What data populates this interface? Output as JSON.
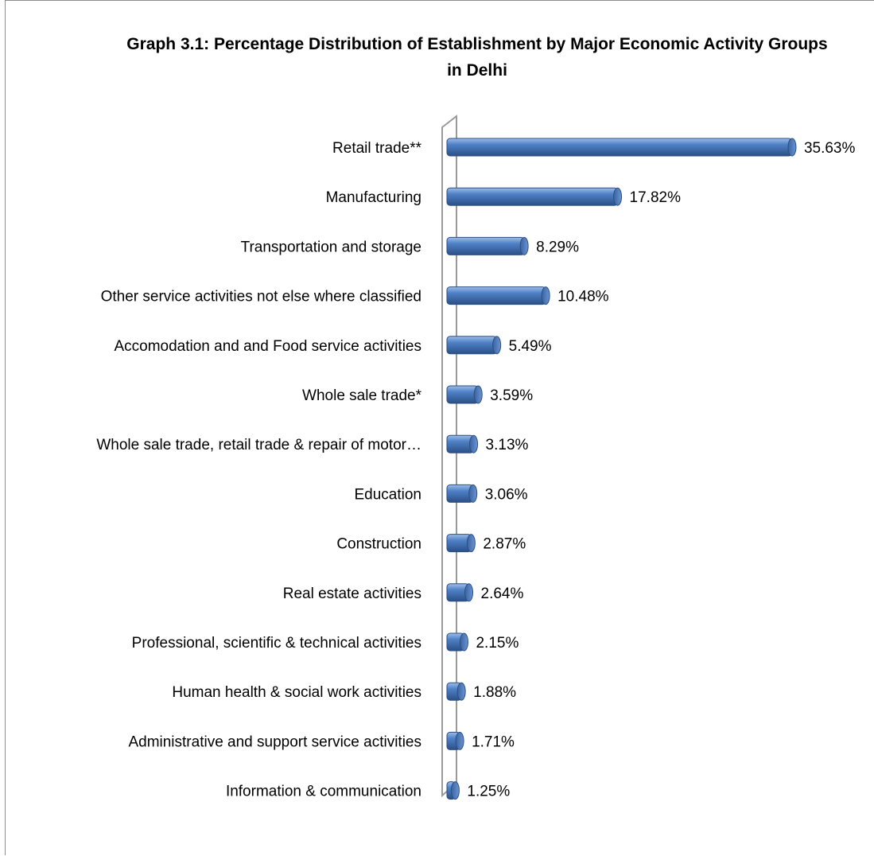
{
  "chart_data": {
    "type": "bar",
    "orientation": "horizontal",
    "title": "Graph 3.1: Percentage Distribution of Establishment by Major Economic Activity Groups in Delhi",
    "xlabel": "",
    "ylabel": "",
    "grid": false,
    "legend": "none",
    "bar_color": "#4472c4",
    "xlim": [
      0,
      40
    ],
    "categories": [
      "Retail trade**",
      "Manufacturing",
      "Transportation and storage",
      "Other service activities not else where classified",
      "Accomodation and and Food service activities",
      "Whole sale trade*",
      "Whole sale trade, retail trade & repair of motor…",
      "Education",
      "Construction",
      "Real estate activities",
      "Professional, scientific & technical activities",
      "Human health & social work activities",
      "Administrative and support service activities",
      "Information & communication"
    ],
    "values": [
      35.63,
      17.82,
      8.29,
      10.48,
      5.49,
      3.59,
      3.13,
      3.06,
      2.87,
      2.64,
      2.15,
      1.88,
      1.71,
      1.25
    ],
    "data_labels": [
      "35.63%",
      "17.82%",
      "8.29%",
      "10.48%",
      "5.49%",
      "3.59%",
      "3.13%",
      "3.06%",
      "2.87%",
      "2.64%",
      "2.15%",
      "1.88%",
      "1.71%",
      "1.25%"
    ]
  }
}
